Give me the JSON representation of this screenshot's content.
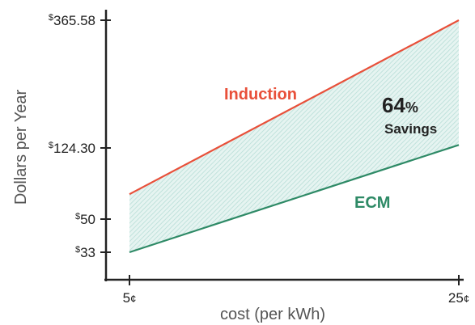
{
  "chart_data": {
    "type": "line",
    "title": "",
    "xlabel": "cost (per kWh)",
    "ylabel": "Dollars per Year",
    "x": [
      5,
      25
    ],
    "x_tick_labels": [
      {
        "value": 5,
        "number": "5",
        "unit": "¢"
      },
      {
        "value": 25,
        "number": "25",
        "unit": "¢"
      }
    ],
    "y_tick_labels": [
      {
        "value": 365.58,
        "prefix": "$",
        "number": "365.58"
      },
      {
        "value": 124.3,
        "prefix": "$",
        "number": "124.30"
      },
      {
        "value": 50,
        "prefix": "$",
        "number": "50"
      },
      {
        "value": 33,
        "prefix": "$",
        "number": "33"
      }
    ],
    "series": [
      {
        "name": "Induction",
        "values": [
          76,
          365.58
        ],
        "color": "#e8503a"
      },
      {
        "name": "ECM",
        "values": [
          33,
          130
        ],
        "color": "#2e8a66"
      }
    ],
    "fill_between": {
      "color": "#cfe9e5"
    },
    "annotation": {
      "value": "64",
      "unit": "%",
      "text": "Savings"
    },
    "grid": false,
    "legend": "none"
  }
}
